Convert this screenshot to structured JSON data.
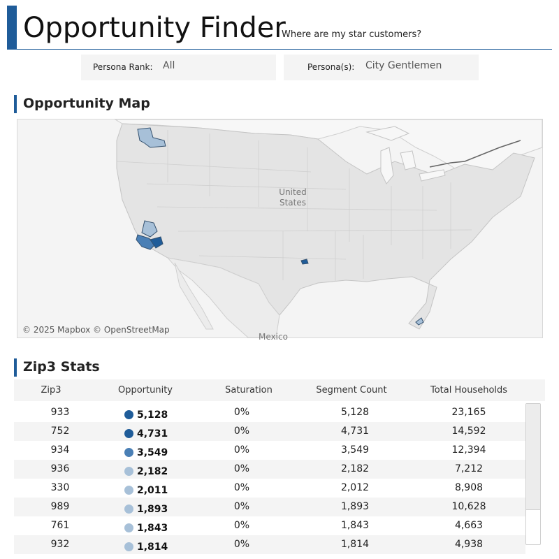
{
  "header": {
    "title": "Opportunity Finder",
    "subtitle": "Where are my star customers?"
  },
  "filters": [
    {
      "label": "Persona Rank:",
      "value": "All"
    },
    {
      "label": "Persona(s):",
      "value": "City Gentlemen"
    }
  ],
  "map_section": {
    "title": "Opportunity Map",
    "labels": {
      "country": [
        "United",
        "States"
      ],
      "mexico": "Mexico"
    },
    "attribution": "© 2025 Mapbox © OpenStreetMap"
  },
  "stats_section": {
    "title": "Zip3 Stats",
    "columns": [
      "Zip3",
      "Opportunity",
      "Saturation",
      "Segment Count",
      "Total Households"
    ],
    "rows": [
      {
        "zip3": "933",
        "opportunity": "5,128",
        "saturation": "0%",
        "segment_count": "5,128",
        "total_households": "23,165",
        "dot_color": "#1f5c99"
      },
      {
        "zip3": "752",
        "opportunity": "4,731",
        "saturation": "0%",
        "segment_count": "4,731",
        "total_households": "14,592",
        "dot_color": "#1f5c99"
      },
      {
        "zip3": "934",
        "opportunity": "3,549",
        "saturation": "0%",
        "segment_count": "3,549",
        "total_households": "12,394",
        "dot_color": "#4a7fb5"
      },
      {
        "zip3": "936",
        "opportunity": "2,182",
        "saturation": "0%",
        "segment_count": "2,182",
        "total_households": "7,212",
        "dot_color": "#a7c0d8"
      },
      {
        "zip3": "330",
        "opportunity": "2,011",
        "saturation": "0%",
        "segment_count": "2,012",
        "total_households": "8,908",
        "dot_color": "#a7c0d8"
      },
      {
        "zip3": "989",
        "opportunity": "1,893",
        "saturation": "0%",
        "segment_count": "1,893",
        "total_households": "10,628",
        "dot_color": "#a7c0d8"
      },
      {
        "zip3": "761",
        "opportunity": "1,843",
        "saturation": "0%",
        "segment_count": "1,843",
        "total_households": "4,663",
        "dot_color": "#a7c0d8"
      },
      {
        "zip3": "932",
        "opportunity": "1,814",
        "saturation": "0%",
        "segment_count": "1,814",
        "total_households": "4,938",
        "dot_color": "#a7c0d8"
      }
    ]
  },
  "colors": {
    "accent": "#1f5c99",
    "dark_dot": "#1f5c99",
    "mid_dot": "#4a7fb5",
    "light_dot": "#a7c0d8"
  }
}
